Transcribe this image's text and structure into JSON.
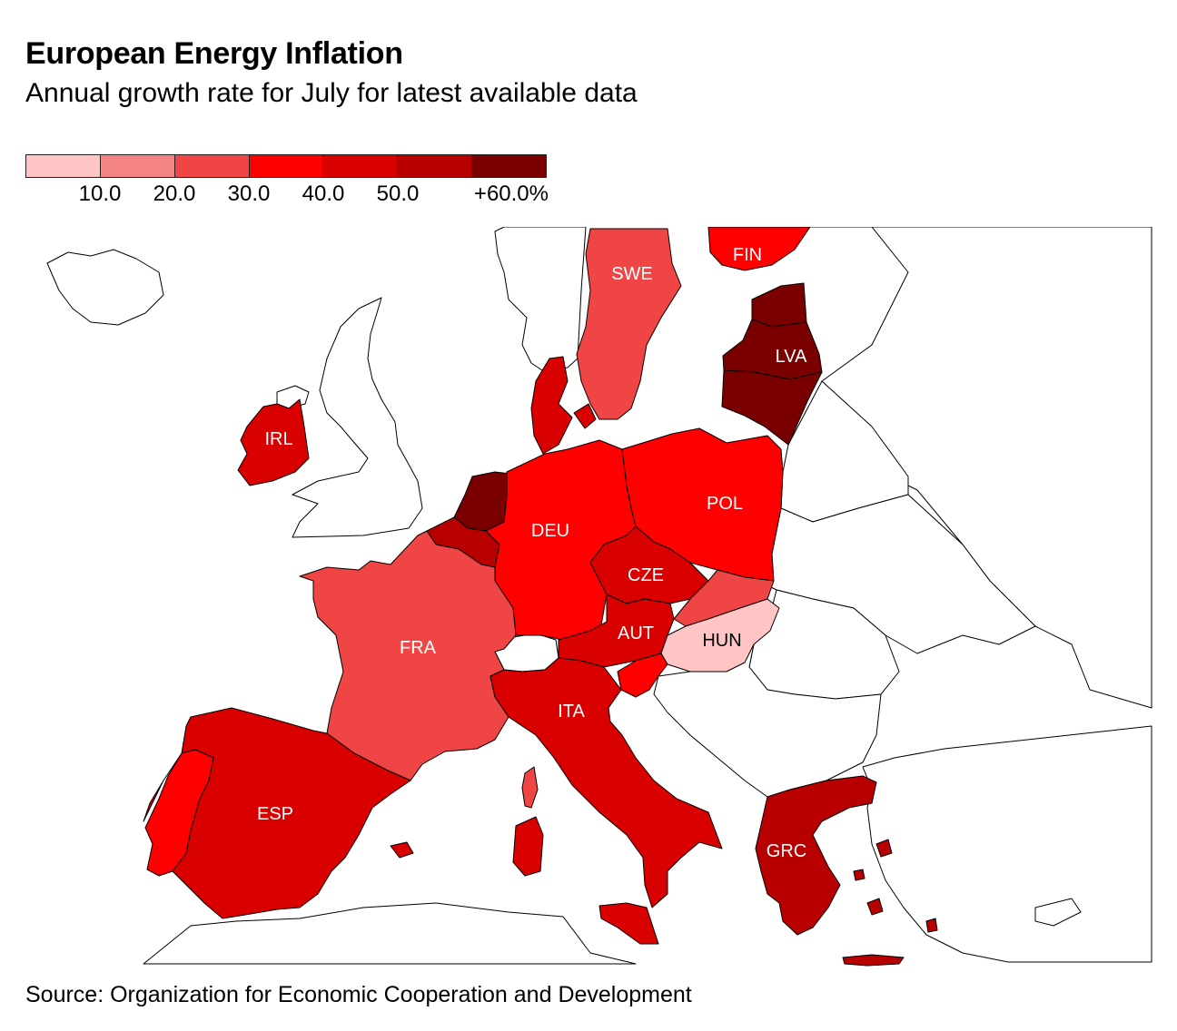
{
  "title": "European Energy Inflation",
  "subtitle": "Annual growth rate for July for latest available data",
  "source": "Source: Organization for Economic Cooperation and Development",
  "legend": {
    "colors": [
      "#ffc4c4",
      "#f58585",
      "#f04545",
      "#ff0000",
      "#d90000",
      "#b80000",
      "#7a0000"
    ],
    "ticks": [
      "10.0",
      "20.0",
      "30.0",
      "40.0",
      "50.0",
      "+60.0%"
    ]
  },
  "countries": {
    "SWE": "SWE",
    "FIN": "FIN",
    "LVA": "LVA",
    "IRL": "IRL",
    "DEU": "DEU",
    "POL": "POL",
    "CZE": "CZE",
    "AUT": "AUT",
    "HUN": "HUN",
    "FRA": "FRA",
    "ITA": "ITA",
    "ESP": "ESP",
    "GRC": "GRC"
  }
}
